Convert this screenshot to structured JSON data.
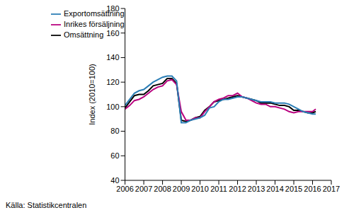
{
  "chart_data": {
    "type": "line",
    "y_label": "Index (2010=100)",
    "annotations": [
      "Källa: Statistikcentralen"
    ],
    "x": [
      2006,
      2006.25,
      2006.5,
      2006.75,
      2007,
      2007.25,
      2007.5,
      2007.75,
      2008,
      2008.25,
      2008.5,
      2008.75,
      2009,
      2009.25,
      2009.5,
      2009.75,
      2010,
      2010.25,
      2010.5,
      2010.75,
      2011,
      2011.25,
      2011.5,
      2011.75,
      2012,
      2012.25,
      2012.5,
      2012.75,
      2013,
      2013.25,
      2013.5,
      2013.75,
      2014,
      2014.25,
      2014.5,
      2014.75,
      2015,
      2015.25,
      2015.5,
      2015.75,
      2016,
      2016.17
    ],
    "series": [
      {
        "name": "Omsättning",
        "color": "#000000",
        "values": [
          99,
          104,
          109,
          110,
          110,
          113,
          117,
          118,
          119,
          123,
          123,
          119,
          89,
          88,
          89,
          91,
          92,
          97,
          100,
          104,
          105,
          106,
          107,
          108,
          109,
          108,
          107,
          106,
          105,
          103,
          103,
          103,
          102,
          101,
          101,
          100,
          97,
          97,
          96,
          95,
          95,
          96
        ]
      },
      {
        "name": "Inrikes försäljning",
        "color": "#b8007e",
        "values": [
          98,
          101,
          105,
          106,
          108,
          111,
          114,
          116,
          117,
          121,
          122,
          118,
          96,
          89,
          89,
          91,
          91,
          96,
          100,
          104,
          106,
          107,
          109,
          109,
          111,
          108,
          107,
          105,
          103,
          102,
          102,
          100,
          100,
          99,
          98,
          96,
          95,
          96,
          96,
          96,
          96,
          98
        ]
      },
      {
        "name": "Exportomsättning",
        "color": "#2a7db5",
        "values": [
          101,
          106,
          111,
          113,
          114,
          117,
          120,
          122,
          124,
          125,
          125,
          121,
          87,
          87,
          89,
          90,
          91,
          93,
          99,
          100,
          104,
          106,
          106,
          107,
          108,
          108,
          107,
          106,
          105,
          104,
          104,
          104,
          103,
          103,
          103,
          102,
          100,
          98,
          96,
          95,
          94,
          94
        ]
      }
    ],
    "xlim": [
      2006,
      2017
    ],
    "xticks": [
      2006,
      2007,
      2008,
      2009,
      2010,
      2011,
      2012,
      2013,
      2014,
      2015,
      2016,
      2017
    ],
    "ylim": [
      40,
      180
    ],
    "yticks": [
      40,
      60,
      80,
      100,
      120,
      140,
      160,
      180
    ],
    "grid": false,
    "legend": "upper left"
  }
}
